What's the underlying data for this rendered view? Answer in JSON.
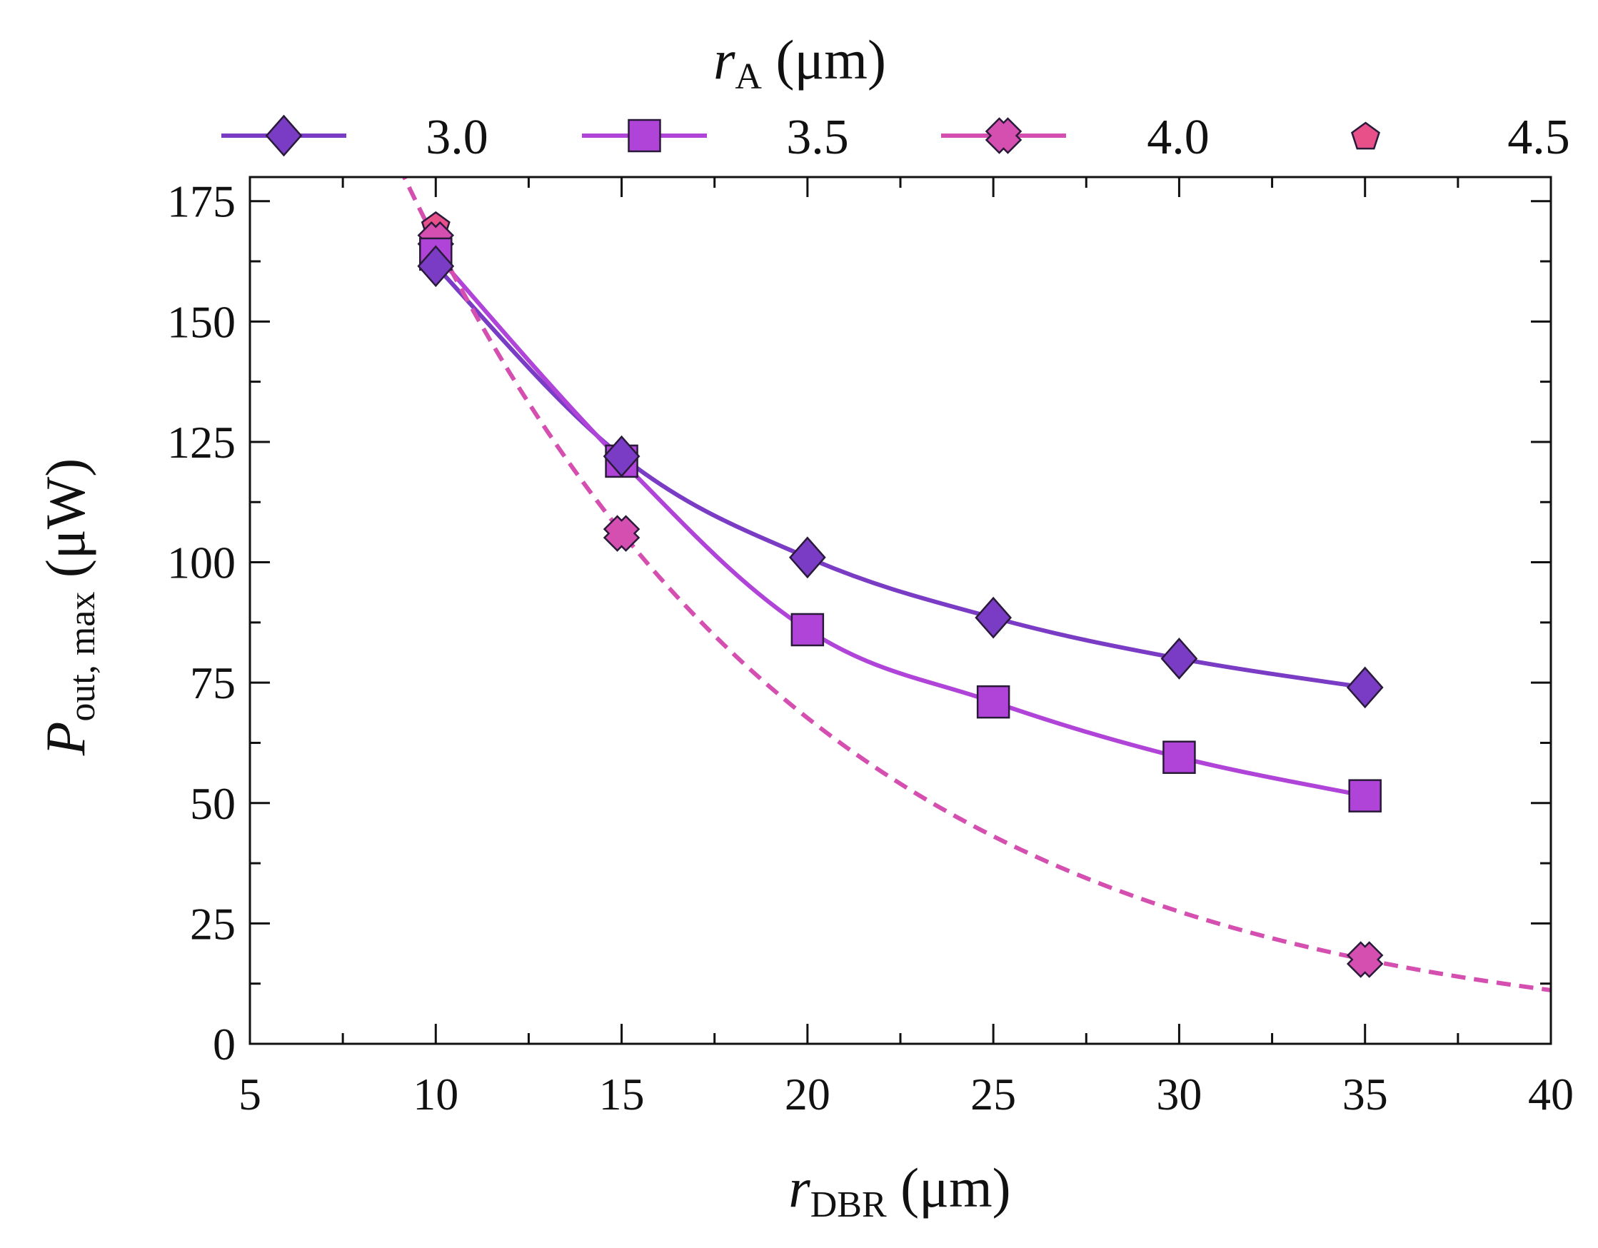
{
  "chart_data": {
    "type": "line",
    "legend": {
      "title_var": "r",
      "title_sub": "A",
      "title_unit": "(μm)",
      "placement": "top"
    },
    "xlabel": {
      "var": "r",
      "sub": "DBR",
      "unit": "(μm)"
    },
    "ylabel": {
      "var": "P",
      "sub": "out, max",
      "unit": "(μW)"
    },
    "xlim": [
      5,
      40
    ],
    "ylim": [
      0,
      180
    ],
    "xticks": [
      5,
      10,
      15,
      20,
      25,
      30,
      35,
      40
    ],
    "yticks": [
      0,
      25,
      50,
      75,
      100,
      125,
      150,
      175
    ],
    "series": [
      {
        "name": "3.0",
        "marker": "diamond",
        "color": "#7a3cc4",
        "line": "solid",
        "x": [
          10,
          15,
          20,
          25,
          30,
          35
        ],
        "y": [
          161.5,
          122,
          101,
          88.5,
          80,
          74
        ]
      },
      {
        "name": "3.5",
        "marker": "square",
        "color": "#b044d8",
        "line": "solid",
        "x": [
          10,
          15,
          20,
          25,
          30,
          35
        ],
        "y": [
          164,
          121,
          86,
          71,
          59.5,
          51.5
        ]
      },
      {
        "name": "4.0",
        "marker": "x",
        "color": "#d44fb0",
        "line": "dashed",
        "fit": "exponential",
        "x": [
          10,
          15,
          35
        ],
        "y": [
          167,
          106,
          17.5
        ]
      },
      {
        "name": "4.5",
        "marker": "pentagon",
        "color": "#e8508a",
        "line": "none",
        "x": [
          10
        ],
        "y": [
          170
        ]
      }
    ]
  }
}
